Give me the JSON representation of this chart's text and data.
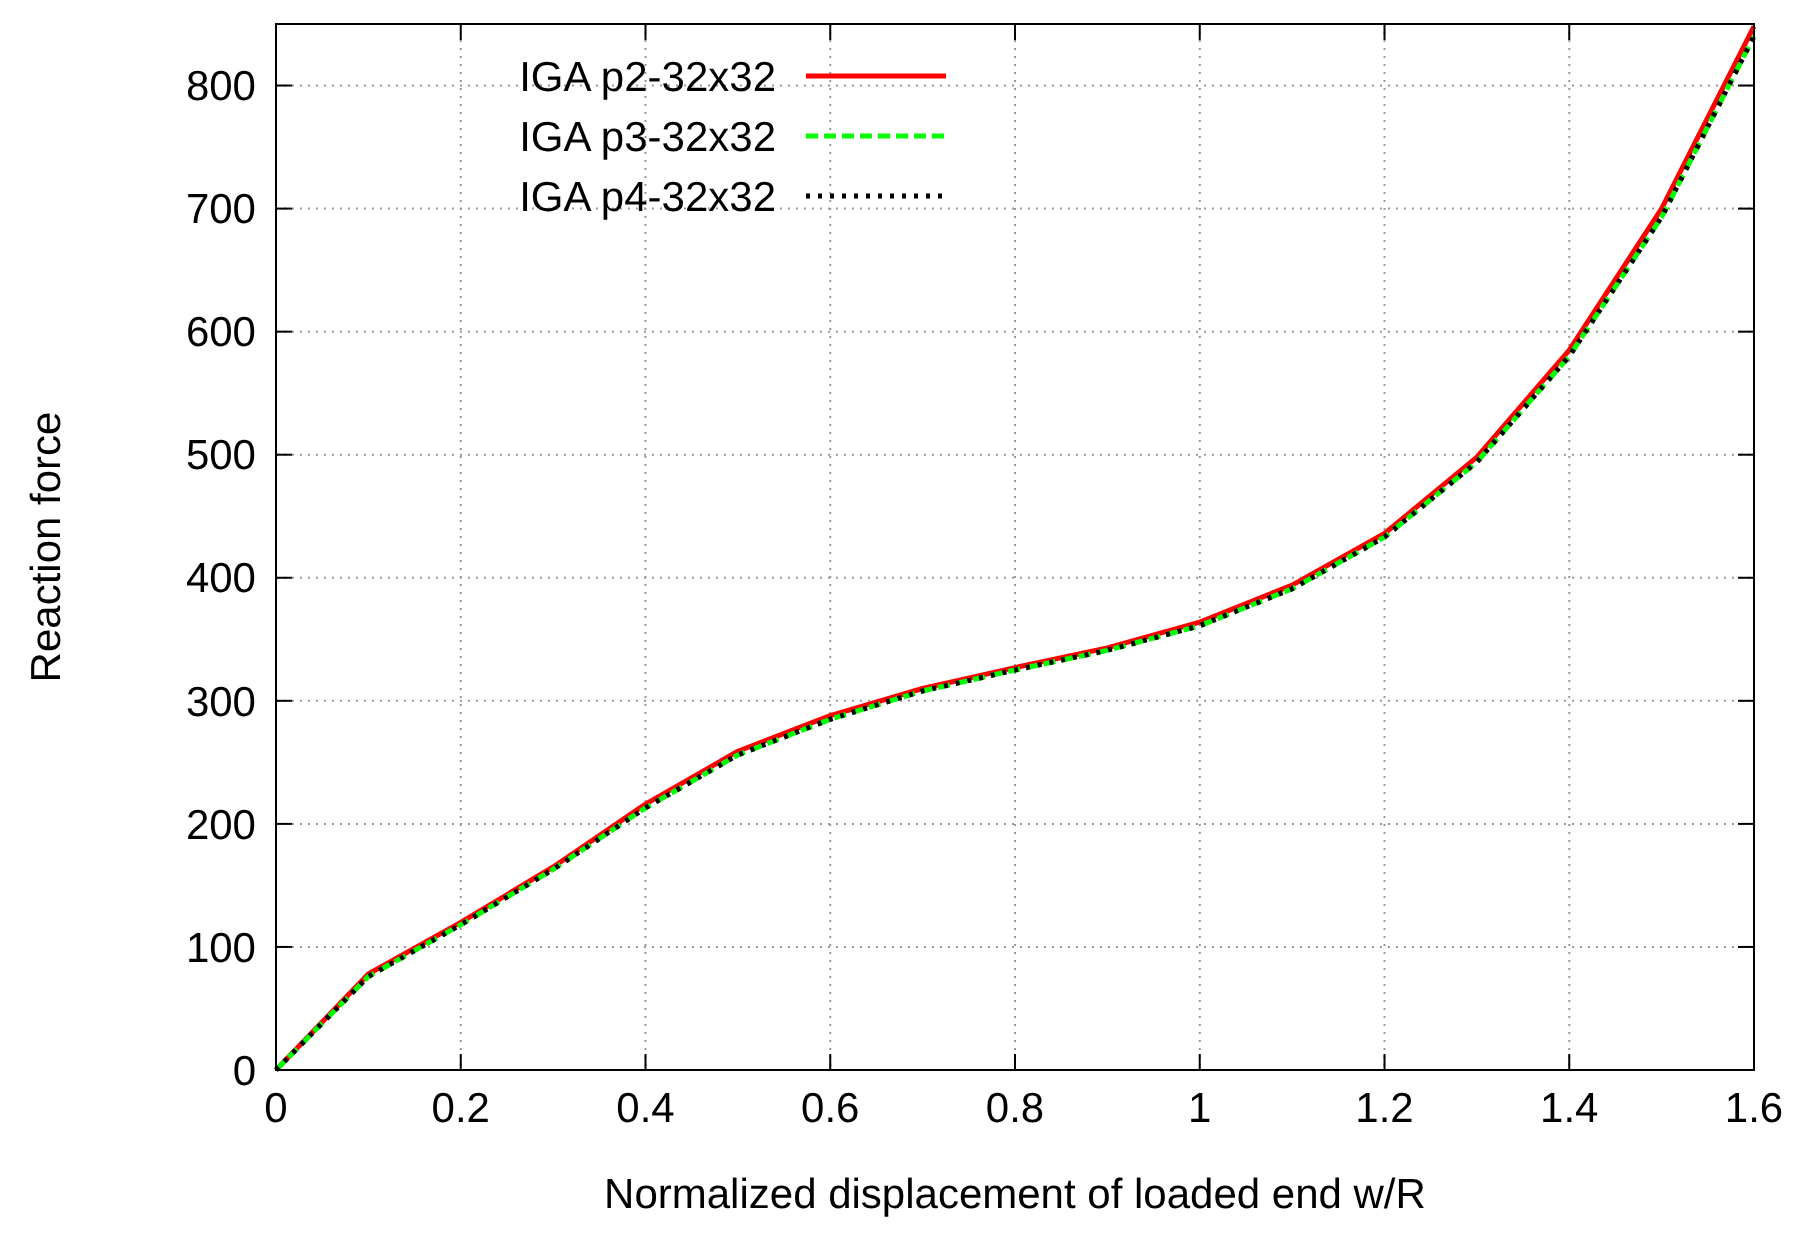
{
  "chart_data": {
    "type": "line",
    "xlabel": "Normalized displacement of loaded end w/R",
    "ylabel": "Reaction force",
    "x": [
      0,
      0.1,
      0.2,
      0.3,
      0.4,
      0.5,
      0.6,
      0.7,
      0.8,
      0.9,
      1.0,
      1.1,
      1.2,
      1.3,
      1.4,
      1.5,
      1.6
    ],
    "series": [
      {
        "name": "IGA p2-32x32",
        "color": "#ff0000",
        "line_style": "solid",
        "values": [
          0,
          78,
          120,
          165,
          216,
          259,
          288,
          310,
          327,
          343,
          364,
          394,
          436,
          498,
          585,
          700,
          848
        ]
      },
      {
        "name": "IGA p3-32x32",
        "color": "#00ff00",
        "line_style": "dashed",
        "values": [
          0,
          76,
          118,
          163,
          213,
          256,
          285,
          308,
          325,
          341,
          361,
          391,
          433,
          494,
          580,
          693,
          840
        ]
      },
      {
        "name": "IGA p4-32x32",
        "color": "#000000",
        "line_style": "dotted",
        "values": [
          0,
          76,
          118,
          163,
          213,
          256,
          285,
          308,
          325,
          341,
          361,
          391,
          433,
          494,
          580,
          693,
          840
        ]
      }
    ],
    "xlim": [
      0,
      1.6
    ],
    "xticks": [
      0,
      0.2,
      0.4,
      0.6,
      0.8,
      1,
      1.2,
      1.4,
      1.6
    ],
    "ylim": [
      0,
      850
    ],
    "yticks": [
      0,
      100,
      200,
      300,
      400,
      500,
      600,
      700,
      800
    ],
    "grid": true,
    "legend": "top left"
  }
}
